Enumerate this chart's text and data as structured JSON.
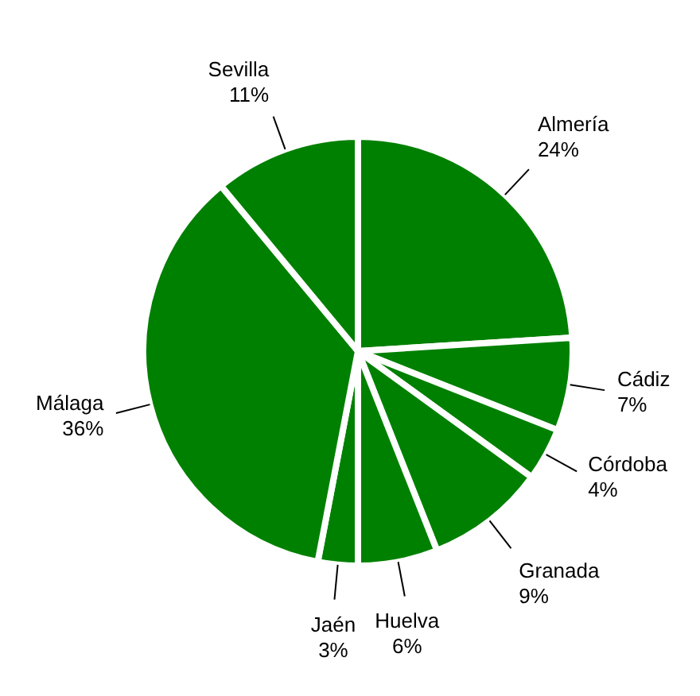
{
  "chart_data": {
    "type": "pie",
    "categories": [
      "Almería",
      "Cádiz",
      "Córdoba",
      "Granada",
      "Huelva",
      "Jaén",
      "Málaga",
      "Sevilla"
    ],
    "values": [
      24,
      7,
      4,
      9,
      6,
      3,
      36,
      11
    ],
    "colors": [
      "#008000",
      "#008000",
      "#008000",
      "#008000",
      "#008000",
      "#008000",
      "#008000",
      "#008000"
    ],
    "value_labels": [
      "24%",
      "7%",
      "4%",
      "9%",
      "6%",
      "3%",
      "36%",
      "11%"
    ],
    "legend": false
  }
}
